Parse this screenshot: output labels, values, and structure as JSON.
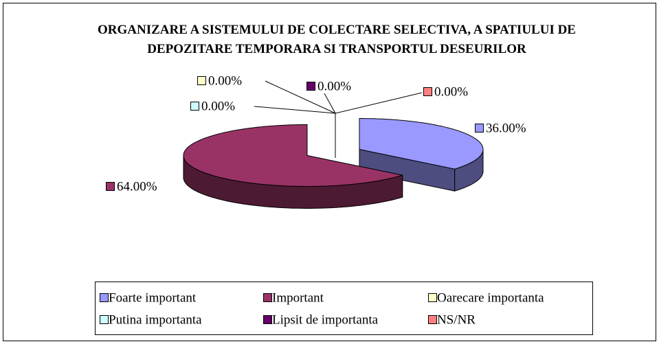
{
  "chart_data": {
    "type": "pie3d",
    "title": "ORGANIZARE A SISTEMULUI DE COLECTARE SELECTIVA, A SPATIULUI DE DEPOZITARE TEMPORARA SI TRANSPORTUL DESEURILOR",
    "categories": [
      "Foarte important",
      "Important",
      "Oarecare importanta",
      "Putina importanta",
      "Lipsit de importanta",
      "NS/NR"
    ],
    "values": [
      36,
      64,
      0,
      0,
      0,
      0
    ],
    "value_labels": [
      "36.00%",
      "64.00%",
      "0.00%",
      "0.00%",
      "0.00%",
      "0.00%"
    ],
    "colors": [
      "#9999ff",
      "#993366",
      "#ffffcc",
      "#ccffff",
      "#660066",
      "#ff8080"
    ],
    "legend": "bottom"
  }
}
